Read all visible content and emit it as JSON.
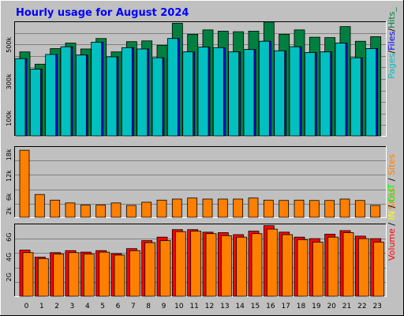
{
  "chart_data": [
    {
      "type": "bar",
      "title": "Hourly usage for August 2024",
      "categories": [
        "0",
        "1",
        "2",
        "3",
        "4",
        "5",
        "6",
        "7",
        "8",
        "9",
        "10",
        "11",
        "12",
        "13",
        "14",
        "15",
        "16",
        "17",
        "18",
        "19",
        "20",
        "21",
        "22",
        "23"
      ],
      "ylim": [
        0,
        620000
      ],
      "y_ticks": [
        {
          "value": 100000,
          "label": "100k"
        },
        {
          "value": 300000,
          "label": "300k"
        },
        {
          "value": 500000,
          "label": "500k"
        }
      ],
      "legend": [
        {
          "text": "Pages",
          "color": "#00c0c0"
        },
        {
          "text": "/",
          "color": "#000000"
        },
        {
          "text": "Files",
          "color": "#0000ff"
        },
        {
          "text": "/",
          "color": "#000000"
        },
        {
          "text": "Hits_",
          "color": "#008040"
        }
      ],
      "grid": true,
      "series": [
        {
          "name": "Hits",
          "color": "#008040",
          "values": [
            462000,
            395000,
            480000,
            510000,
            478000,
            535000,
            462000,
            518000,
            522000,
            498000,
            618000,
            558000,
            582000,
            575000,
            572000,
            575000,
            625000,
            558000,
            582000,
            542000,
            540000,
            600000,
            520000,
            545000
          ]
        },
        {
          "name": "Files",
          "color": "#0000ff",
          "values": [
            425000,
            368000,
            448000,
            490000,
            445000,
            515000,
            435000,
            485000,
            478000,
            430000,
            535000,
            462000,
            488000,
            485000,
            462000,
            475000,
            520000,
            468000,
            490000,
            458000,
            462000,
            510000,
            430000,
            480000
          ]
        },
        {
          "name": "Pages",
          "color": "#00c0c0",
          "values": [
            425000,
            368000,
            448000,
            490000,
            445000,
            515000,
            435000,
            485000,
            478000,
            430000,
            535000,
            462000,
            488000,
            485000,
            462000,
            475000,
            520000,
            468000,
            490000,
            458000,
            462000,
            510000,
            430000,
            480000
          ]
        }
      ]
    },
    {
      "type": "bar",
      "categories": [
        "0",
        "1",
        "2",
        "3",
        "4",
        "5",
        "6",
        "7",
        "8",
        "9",
        "10",
        "11",
        "12",
        "13",
        "14",
        "15",
        "16",
        "17",
        "18",
        "19",
        "20",
        "21",
        "22",
        "23"
      ],
      "ylim": [
        0,
        20000
      ],
      "y_ticks": [
        {
          "value": 2000,
          "label": "2k"
        },
        {
          "value": 6000,
          "label": "6k"
        },
        {
          "value": 12000,
          "label": "12k"
        },
        {
          "value": 18000,
          "label": "18k"
        }
      ],
      "legend": [
        {
          "text": "Sites",
          "color": "#ff8000"
        }
      ],
      "grid": true,
      "series": [
        {
          "name": "Sites",
          "color": "#ff8000",
          "values": [
            19300,
            6700,
            5100,
            4300,
            3700,
            3700,
            4300,
            3600,
            4500,
            5100,
            5400,
            5700,
            5400,
            5400,
            5400,
            5700,
            5100,
            5000,
            5100,
            5000,
            5000,
            5400,
            5000,
            3600
          ]
        }
      ]
    },
    {
      "type": "bar",
      "categories": [
        "0",
        "1",
        "2",
        "3",
        "4",
        "5",
        "6",
        "7",
        "8",
        "9",
        "10",
        "11",
        "12",
        "13",
        "14",
        "15",
        "16",
        "17",
        "18",
        "19",
        "20",
        "21",
        "22",
        "23"
      ],
      "ylim": [
        0,
        7200
      ],
      "y_ticks": [
        {
          "value": 2000,
          "label": "2G"
        },
        {
          "value": 4000,
          "label": "4G"
        },
        {
          "value": 6000,
          "label": "6G"
        }
      ],
      "legend": [
        {
          "text": "Volume",
          "color": "#ff0000"
        },
        {
          "text": " / ",
          "color": "#000000"
        },
        {
          "text": "IN",
          "color": "#ffff00"
        },
        {
          "text": " / ",
          "color": "#000000"
        },
        {
          "text": "OUT",
          "color": "#00ff00"
        },
        {
          "text": " / ",
          "color": "#000000"
        },
        {
          "text": "Sites",
          "color": "#ff8000"
        }
      ],
      "grid": true,
      "series": [
        {
          "name": "Volume",
          "color": "#ff0000",
          "values": [
            4700,
            4000,
            4450,
            4650,
            4500,
            4650,
            4350,
            4850,
            5650,
            6000,
            6750,
            6750,
            6500,
            6450,
            6250,
            6600,
            7150,
            6500,
            6000,
            5850,
            6300,
            6650,
            6100,
            5850
          ]
        },
        {
          "name": "Sites",
          "color": "#ff8000",
          "values": [
            4450,
            3850,
            4300,
            4450,
            4300,
            4500,
            4200,
            4650,
            5450,
            5650,
            6550,
            6600,
            6350,
            6150,
            6000,
            6350,
            6800,
            6250,
            5750,
            5500,
            6000,
            6450,
            5850,
            5500
          ]
        }
      ]
    }
  ]
}
